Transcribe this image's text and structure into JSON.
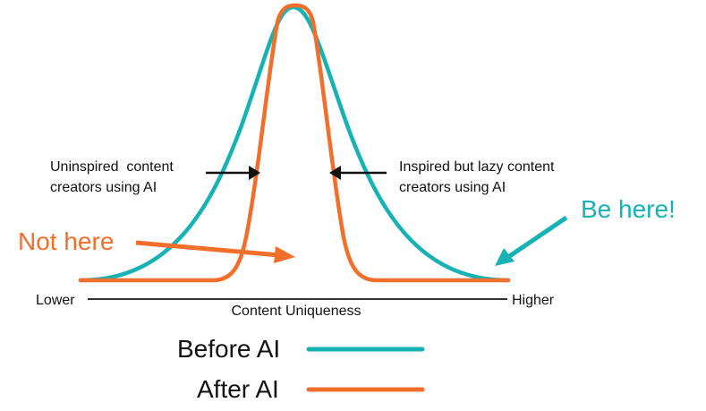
{
  "annotations": {
    "left_line1": "Uninspired  content",
    "left_line2": "creators using AI",
    "right_line1": "Inspired but lazy content",
    "right_line2": "creators using AI",
    "not_here": "Not here",
    "be_here": "Be here!"
  },
  "axis": {
    "title": "Content Uniqueness",
    "low": "Lower",
    "high": "Higher"
  },
  "legend": {
    "before_label": "Before AI",
    "after_label": "After AI"
  },
  "colors": {
    "before": "#16b2b4",
    "after": "#f26f2b",
    "black": "#111111"
  }
}
